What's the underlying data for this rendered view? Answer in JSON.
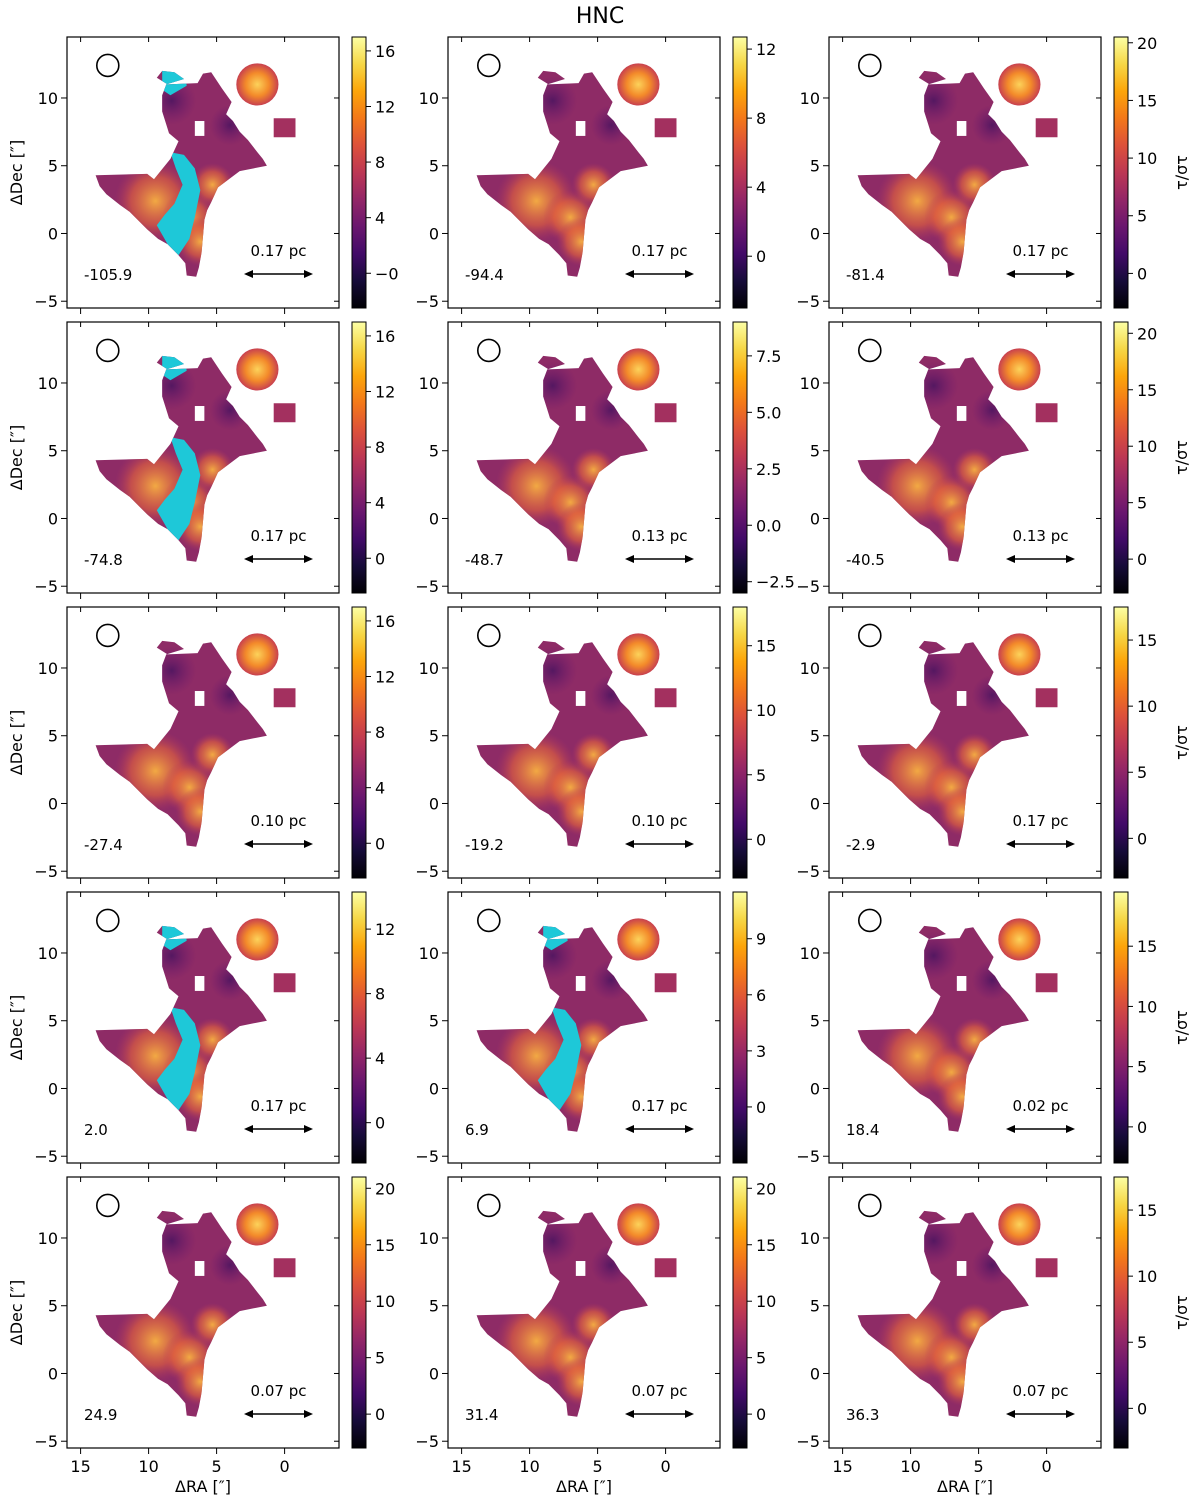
{
  "figure_title": "HNC",
  "colormap": "inferno",
  "mask_color": "#1ec8d8",
  "chart_data": {
    "type": "heatmap",
    "title": "HNC",
    "xlabel": "ΔRA [″]",
    "ylabel": "ΔDec [″]",
    "colorbar_label": "τ/στ",
    "xlim": [
      16,
      -4
    ],
    "ylim": [
      -5.5,
      14.5
    ],
    "xticks": [
      15,
      10,
      5,
      0
    ],
    "yticks": [
      -5,
      0,
      5,
      10
    ],
    "x_tick_labels": [
      "15",
      "10",
      "5",
      "0"
    ],
    "y_tick_labels": [
      "−5",
      "0",
      "5",
      "10"
    ],
    "grid": false,
    "panels": [
      {
        "velocity": "-105.9",
        "scale_bar": "0.17 pc",
        "cmin": -2.5,
        "cmax": 17,
        "cticks": [
          0,
          4,
          8,
          12,
          16
        ],
        "ctick_labels": [
          "−0",
          "4",
          "8",
          "12",
          "16"
        ],
        "has_mask": true,
        "show_clabel": false
      },
      {
        "velocity": "-94.4",
        "scale_bar": "0.17 pc",
        "cmin": -3,
        "cmax": 12.7,
        "cticks": [
          0,
          4,
          8,
          12
        ],
        "ctick_labels": [
          "0",
          "4",
          "8",
          "12"
        ],
        "has_mask": false,
        "show_clabel": false
      },
      {
        "velocity": "-81.4",
        "scale_bar": "0.17 pc",
        "cmin": -3,
        "cmax": 20.5,
        "cticks": [
          0,
          5,
          10,
          15,
          20
        ],
        "ctick_labels": [
          "0",
          "5",
          "10",
          "15",
          "20"
        ],
        "has_mask": false,
        "show_clabel": true
      },
      {
        "velocity": "-74.8",
        "scale_bar": "0.17 pc",
        "cmin": -2.5,
        "cmax": 17,
        "cticks": [
          0,
          4,
          8,
          12,
          16
        ],
        "ctick_labels": [
          "0",
          "4",
          "8",
          "12",
          "16"
        ],
        "has_mask": true,
        "show_clabel": false
      },
      {
        "velocity": "-48.7",
        "scale_bar": "0.13 pc",
        "cmin": -3,
        "cmax": 9,
        "cticks": [
          -2.5,
          0,
          2.5,
          5,
          7.5
        ],
        "ctick_labels": [
          "−2.5",
          "0.0",
          "2.5",
          "5.0",
          "7.5"
        ],
        "has_mask": false,
        "show_clabel": false
      },
      {
        "velocity": "-40.5",
        "scale_bar": "0.13 pc",
        "cmin": -3,
        "cmax": 21,
        "cticks": [
          0,
          5,
          10,
          15,
          20
        ],
        "ctick_labels": [
          "0",
          "5",
          "10",
          "15",
          "20"
        ],
        "has_mask": false,
        "show_clabel": true
      },
      {
        "velocity": "-27.4",
        "scale_bar": "0.10 pc",
        "cmin": -2.5,
        "cmax": 17,
        "cticks": [
          0,
          4,
          8,
          12,
          16
        ],
        "ctick_labels": [
          "0",
          "4",
          "8",
          "12",
          "16"
        ],
        "has_mask": false,
        "show_clabel": false
      },
      {
        "velocity": "-19.2",
        "scale_bar": "0.10 pc",
        "cmin": -3,
        "cmax": 18,
        "cticks": [
          0,
          5,
          10,
          15
        ],
        "ctick_labels": [
          "0",
          "5",
          "10",
          "15"
        ],
        "has_mask": false,
        "show_clabel": false
      },
      {
        "velocity": "-2.9",
        "scale_bar": "0.17 pc",
        "cmin": -3,
        "cmax": 17.5,
        "cticks": [
          0,
          5,
          10,
          15
        ],
        "ctick_labels": [
          "0",
          "5",
          "10",
          "15"
        ],
        "has_mask": false,
        "show_clabel": true
      },
      {
        "velocity": "2.0",
        "scale_bar": "0.17 pc",
        "cmin": -2.5,
        "cmax": 14.3,
        "cticks": [
          0,
          4,
          8,
          12
        ],
        "ctick_labels": [
          "0",
          "4",
          "8",
          "12"
        ],
        "has_mask": true,
        "show_clabel": false
      },
      {
        "velocity": "6.9",
        "scale_bar": "0.17 pc",
        "cmin": -3,
        "cmax": 11.5,
        "cticks": [
          0,
          3,
          6,
          9
        ],
        "ctick_labels": [
          "0",
          "3",
          "6",
          "9"
        ],
        "has_mask": true,
        "show_clabel": false
      },
      {
        "velocity": "18.4",
        "scale_bar": "0.02 pc",
        "cmin": -3,
        "cmax": 19.5,
        "cticks": [
          0,
          5,
          10,
          15
        ],
        "ctick_labels": [
          "0",
          "5",
          "10",
          "15"
        ],
        "has_mask": false,
        "show_clabel": true
      },
      {
        "velocity": "24.9",
        "scale_bar": "0.07 pc",
        "cmin": -3,
        "cmax": 21,
        "cticks": [
          0,
          5,
          10,
          15,
          20
        ],
        "ctick_labels": [
          "0",
          "5",
          "10",
          "15",
          "20"
        ],
        "has_mask": false,
        "show_clabel": false
      },
      {
        "velocity": "31.4",
        "scale_bar": "0.07 pc",
        "cmin": -3,
        "cmax": 21,
        "cticks": [
          0,
          5,
          10,
          15,
          20
        ],
        "ctick_labels": [
          "0",
          "5",
          "10",
          "15",
          "20"
        ],
        "has_mask": false,
        "show_clabel": false
      },
      {
        "velocity": "36.3",
        "scale_bar": "0.07 pc",
        "cmin": -3,
        "cmax": 17.5,
        "cticks": [
          0,
          5,
          10,
          15
        ],
        "ctick_labels": [
          "0",
          "5",
          "10",
          "15"
        ],
        "has_mask": false,
        "show_clabel": true
      }
    ]
  }
}
